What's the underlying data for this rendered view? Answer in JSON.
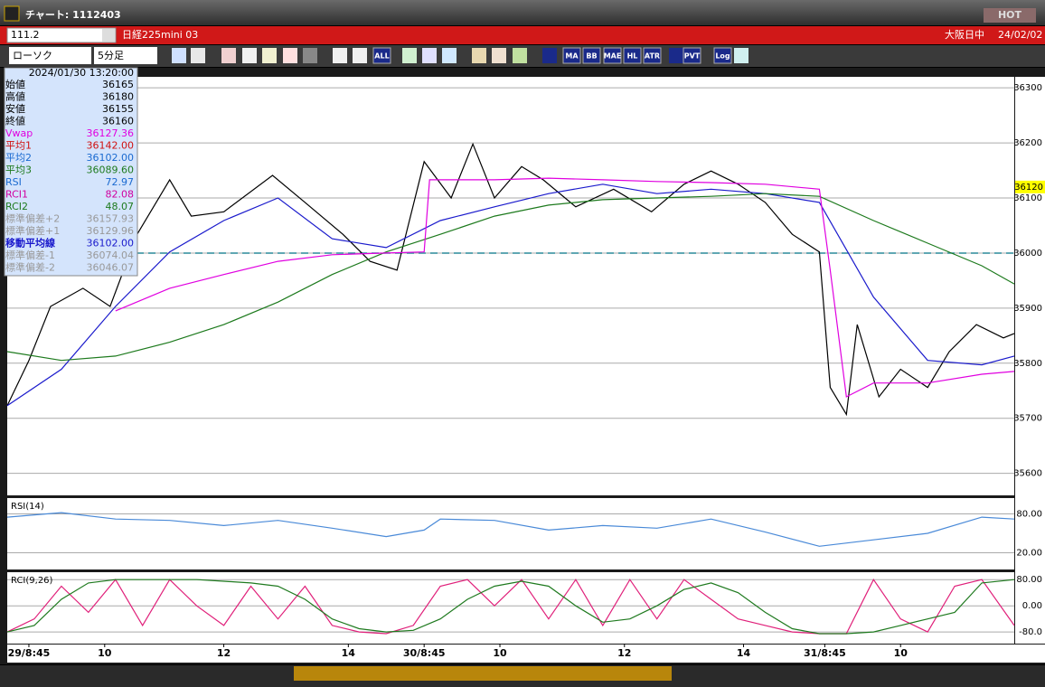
{
  "window": {
    "title": "チャート: 1112403",
    "hot": "HOT"
  },
  "symbol_bar": {
    "code": "111.2",
    "name": "日経225mini 03",
    "market": "大阪日中",
    "date": "24/02/02"
  },
  "toolbar": {
    "chart_type": "ローソク",
    "interval": "5分足",
    "buttons": [
      "ALL",
      "MA",
      "BB",
      "MAE",
      "HL",
      "ATR",
      "PVT",
      "Log"
    ]
  },
  "info_panel": {
    "datetime": "2024/01/30  13:20:00",
    "rows": [
      [
        "始値",
        "36165"
      ],
      [
        "高値",
        "36180"
      ],
      [
        "安値",
        "36155"
      ],
      [
        "終値",
        "36160"
      ],
      [
        "Vwap",
        "36127.36"
      ],
      [
        "平均1",
        "36142.00"
      ],
      [
        "平均2",
        "36102.00"
      ],
      [
        "平均3",
        "36089.60"
      ],
      [
        "RSI",
        "72.97"
      ],
      [
        "RCI1",
        "82.08"
      ],
      [
        "RCI2",
        "48.07"
      ],
      [
        "標準偏差+2",
        "36157.93"
      ],
      [
        "標準偏差+1",
        "36129.96"
      ],
      [
        "移動平均線",
        "36102.00"
      ],
      [
        "標準偏差-1",
        "36074.04"
      ],
      [
        "標準偏差-2",
        "36046.07"
      ]
    ]
  },
  "chart_data": [
    {
      "type": "line",
      "xlim": [
        0,
        186
      ],
      "ylim": [
        35560,
        36320
      ],
      "yticks": [
        35600,
        35700,
        35800,
        35900,
        36000,
        36100,
        36200,
        36300
      ],
      "xticks": [
        {
          "value": 4,
          "label": "29/8:45"
        },
        {
          "value": 18,
          "label": "10"
        },
        {
          "value": 40,
          "label": "12"
        },
        {
          "value": 63,
          "label": "14"
        },
        {
          "value": 77,
          "label": "30/8:45"
        },
        {
          "value": 91,
          "label": "10"
        },
        {
          "value": 114,
          "label": "12"
        },
        {
          "value": 136,
          "label": "14"
        },
        {
          "value": 151,
          "label": "31/8:45"
        },
        {
          "value": 165,
          "label": "10"
        }
      ],
      "hline": 36000,
      "hline_color": "#2a8a9a",
      "last_price": 36120,
      "series": [
        {
          "color": "#000000",
          "x": [
            0,
            4,
            8,
            14,
            19,
            24,
            30,
            34,
            40,
            49,
            55,
            62,
            67,
            72,
            77,
            82,
            86,
            90,
            95,
            99,
            105,
            112,
            119,
            125,
            130,
            135,
            140,
            145,
            150,
            152,
            155,
            157,
            161,
            165,
            170,
            174,
            179,
            184,
            186
          ],
          "values": [
            35723,
            35805,
            35903,
            35936,
            35903,
            36034,
            36133,
            36067,
            36075,
            36141,
            36092,
            36034,
            35985,
            35969,
            36166,
            36100,
            36198,
            36100,
            36157,
            36133,
            36084,
            36116,
            36075,
            36125,
            36149,
            36125,
            36092,
            36034,
            36002,
            35756,
            35707,
            35870,
            35739,
            35789,
            35756,
            35821,
            35870,
            35846,
            35854
          ]
        },
        {
          "color": "#1a1acc",
          "x": [
            0,
            10,
            20,
            30,
            40,
            50,
            60,
            70,
            80,
            90,
            100,
            110,
            120,
            130,
            140,
            150,
            160,
            170,
            180,
            186
          ],
          "values": [
            35723,
            35789,
            35903,
            36002,
            36059,
            36100,
            36026,
            36010,
            36059,
            36084,
            36108,
            36125,
            36108,
            36116,
            36108,
            36092,
            35920,
            35805,
            35797,
            35813
          ]
        },
        {
          "color": "#1d7a1d",
          "x": [
            0,
            10,
            20,
            30,
            40,
            50,
            60,
            70,
            80,
            90,
            100,
            110,
            120,
            130,
            140,
            150,
            160,
            170,
            180,
            186
          ],
          "values": [
            35821,
            35805,
            35813,
            35838,
            35870,
            35911,
            35961,
            36002,
            36034,
            36067,
            36087,
            36097,
            36100,
            36103,
            36108,
            36103,
            36059,
            36018,
            35977,
            35944
          ]
        },
        {
          "color": "#e000e0",
          "x": [
            20,
            30,
            40,
            50,
            60,
            70,
            77,
            78,
            90,
            100,
            110,
            120,
            130,
            140,
            150,
            152,
            155,
            160,
            170,
            180,
            186
          ],
          "values": [
            35895,
            35936,
            35961,
            35985,
            35997,
            36000,
            36002,
            36133,
            36133,
            36136,
            36133,
            36130,
            36128,
            36125,
            36116,
            35969,
            35739,
            35764,
            35764,
            35780,
            35785
          ]
        }
      ]
    },
    {
      "type": "line",
      "title": "RSI(14)",
      "xlim": [
        0,
        186
      ],
      "ylim": [
        -3,
        103
      ],
      "yticks": [
        {
          "value": 80,
          "label": "80.00"
        },
        {
          "value": 20,
          "label": "20.00"
        }
      ],
      "series": [
        {
          "color": "#4a8ad8",
          "x": [
            0,
            10,
            20,
            30,
            40,
            50,
            60,
            70,
            77,
            80,
            90,
            100,
            110,
            120,
            130,
            140,
            150,
            160,
            170,
            180,
            186
          ],
          "values": [
            75,
            82,
            72,
            70,
            62,
            70,
            58,
            45,
            55,
            72,
            70,
            55,
            62,
            58,
            72,
            52,
            30,
            40,
            50,
            75,
            72
          ]
        }
      ]
    },
    {
      "type": "line",
      "title": "RCI(9,26)",
      "xlim": [
        0,
        186
      ],
      "ylim": [
        -110,
        100
      ],
      "yticks": [
        {
          "value": 80,
          "label": "80.00"
        },
        {
          "value": 0,
          "label": "0.00"
        },
        {
          "value": -80,
          "label": "-80.0"
        }
      ],
      "series": [
        {
          "color": "#e0207a",
          "x": [
            0,
            5,
            10,
            15,
            20,
            25,
            30,
            35,
            40,
            45,
            50,
            55,
            60,
            65,
            70,
            75,
            80,
            85,
            90,
            95,
            100,
            105,
            110,
            115,
            120,
            125,
            130,
            135,
            140,
            145,
            150,
            155,
            160,
            165,
            170,
            175,
            180,
            186
          ],
          "values": [
            -80,
            -40,
            60,
            -20,
            80,
            -60,
            80,
            0,
            -60,
            60,
            -40,
            60,
            -60,
            -80,
            -85,
            -60,
            60,
            80,
            0,
            80,
            -40,
            80,
            -60,
            80,
            -40,
            80,
            20,
            -40,
            -60,
            -80,
            -85,
            -85,
            80,
            -40,
            -80,
            60,
            80,
            -60
          ]
        },
        {
          "color": "#1f7a1f",
          "x": [
            0,
            5,
            10,
            15,
            20,
            25,
            30,
            35,
            40,
            45,
            50,
            55,
            60,
            65,
            70,
            75,
            80,
            85,
            90,
            95,
            100,
            105,
            110,
            115,
            120,
            125,
            130,
            135,
            140,
            145,
            150,
            155,
            160,
            165,
            170,
            175,
            180,
            186
          ],
          "values": [
            -80,
            -60,
            20,
            70,
            80,
            80,
            80,
            80,
            75,
            70,
            60,
            20,
            -40,
            -70,
            -80,
            -75,
            -40,
            20,
            60,
            75,
            60,
            0,
            -50,
            -40,
            0,
            50,
            70,
            40,
            -20,
            -70,
            -85,
            -85,
            -80,
            -60,
            -40,
            -20,
            70,
            80
          ]
        }
      ]
    }
  ]
}
